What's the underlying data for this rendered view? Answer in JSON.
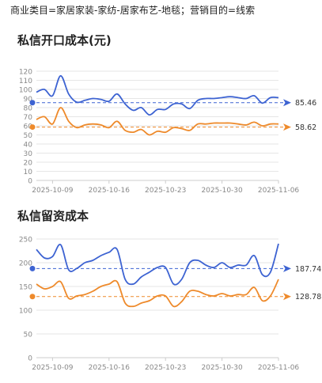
{
  "filter_text": "商业类目=家居家装-家纺-居家布艺-地毯；营销目的=线索",
  "colors": {
    "blue": "#3d63d2",
    "orange": "#ee8a2b",
    "grid": "#e6e6e6",
    "axis_text": "#888888"
  },
  "chart_data": [
    {
      "type": "line",
      "title": "私信开口成本(元)",
      "x": [
        "2025-10-07",
        "2025-10-08",
        "2025-10-09",
        "2025-10-10",
        "2025-10-11",
        "2025-10-12",
        "2025-10-13",
        "2025-10-14",
        "2025-10-15",
        "2025-10-16",
        "2025-10-17",
        "2025-10-18",
        "2025-10-19",
        "2025-10-20",
        "2025-10-21",
        "2025-10-22",
        "2025-10-23",
        "2025-10-24",
        "2025-10-25",
        "2025-10-26",
        "2025-10-27",
        "2025-10-28",
        "2025-10-29",
        "2025-10-30",
        "2025-10-31",
        "2025-11-01",
        "2025-11-02",
        "2025-11-03",
        "2025-11-04",
        "2025-11-05",
        "2025-11-06"
      ],
      "x_ticks": [
        "2025-10-09",
        "2025-10-16",
        "2025-10-23",
        "2025-10-30",
        "2025-11-06"
      ],
      "ylim": [
        0,
        120
      ],
      "y_ticks": [
        0,
        10,
        20,
        30,
        40,
        50,
        60,
        70,
        80,
        90,
        100,
        110,
        120
      ],
      "grid": true,
      "series": [
        {
          "color": "#3d63d2",
          "values": [
            97,
            100,
            93,
            115,
            95,
            86,
            88,
            90,
            89,
            87,
            95,
            84,
            77,
            80,
            72,
            78,
            78,
            84,
            84,
            79,
            88,
            90,
            90,
            91,
            92,
            91,
            90,
            93,
            85,
            91,
            91
          ],
          "ref_value": 85.46,
          "ref_label": "85.46"
        },
        {
          "color": "#ee8a2b",
          "values": [
            67,
            70,
            62,
            80,
            65,
            58,
            61,
            62,
            61,
            58,
            65,
            55,
            53,
            56,
            50,
            54,
            53,
            58,
            57,
            55,
            62,
            62,
            63,
            63,
            63,
            62,
            61,
            64,
            60,
            62,
            62
          ],
          "ref_value": 58.62,
          "ref_label": "58.62"
        }
      ]
    },
    {
      "type": "line",
      "title": "私信留资成本",
      "x": [
        "2025-10-07",
        "2025-10-08",
        "2025-10-09",
        "2025-10-10",
        "2025-10-11",
        "2025-10-12",
        "2025-10-13",
        "2025-10-14",
        "2025-10-15",
        "2025-10-16",
        "2025-10-17",
        "2025-10-18",
        "2025-10-19",
        "2025-10-20",
        "2025-10-21",
        "2025-10-22",
        "2025-10-23",
        "2025-10-24",
        "2025-10-25",
        "2025-10-26",
        "2025-10-27",
        "2025-10-28",
        "2025-10-29",
        "2025-10-30",
        "2025-10-31",
        "2025-11-01",
        "2025-11-02",
        "2025-11-03",
        "2025-11-04",
        "2025-11-05",
        "2025-11-06"
      ],
      "x_ticks": [
        "2025-10-09",
        "2025-10-16",
        "2025-10-23",
        "2025-10-30",
        "2025-11-06"
      ],
      "ylim": [
        0,
        250
      ],
      "y_ticks": [
        0,
        50,
        100,
        150,
        200,
        250
      ],
      "grid": true,
      "series": [
        {
          "color": "#3d63d2",
          "values": [
            228,
            210,
            213,
            238,
            185,
            188,
            200,
            205,
            215,
            222,
            228,
            165,
            155,
            170,
            180,
            190,
            190,
            155,
            165,
            200,
            205,
            195,
            190,
            200,
            190,
            195,
            195,
            215,
            175,
            180,
            240
          ],
          "ref_value": 187.74,
          "ref_label": "187.74"
        },
        {
          "color": "#ee8a2b",
          "values": [
            155,
            145,
            150,
            160,
            125,
            130,
            133,
            140,
            150,
            155,
            160,
            115,
            108,
            115,
            120,
            130,
            130,
            108,
            118,
            140,
            140,
            133,
            130,
            135,
            130,
            133,
            133,
            148,
            120,
            130,
            165
          ],
          "ref_value": 128.78,
          "ref_label": "128.78"
        }
      ]
    }
  ]
}
